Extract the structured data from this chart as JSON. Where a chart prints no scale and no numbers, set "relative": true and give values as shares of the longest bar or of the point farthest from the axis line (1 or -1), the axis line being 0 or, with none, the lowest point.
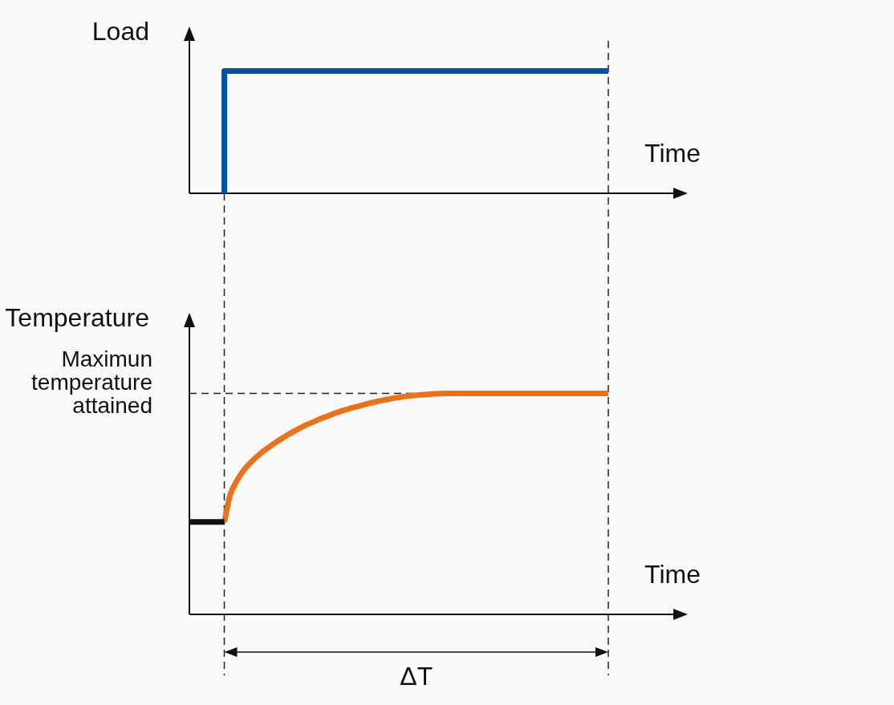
{
  "chart_data": [
    {
      "type": "step",
      "ylabel": "Load",
      "xlabel": "Time",
      "relative": true,
      "categories": [
        null,
        null,
        null,
        null,
        null,
        null,
        null,
        null,
        null,
        null,
        null,
        null,
        null,
        null,
        null,
        null,
        null,
        null,
        null,
        null,
        null,
        null,
        null,
        null,
        null,
        null,
        null,
        null,
        null,
        null,
        null,
        null,
        null,
        null,
        null,
        null,
        null,
        null,
        null,
        null,
        null,
        null,
        null,
        null,
        null,
        null,
        null,
        null,
        null,
        null,
        null,
        null,
        null,
        null,
        null,
        null,
        null,
        null,
        null,
        null,
        null,
        null,
        null,
        null,
        null,
        null,
        null,
        null,
        null,
        null,
        null,
        null,
        null,
        null,
        null,
        null,
        null,
        null,
        null,
        null,
        null,
        null,
        null,
        null,
        null
      ],
      "series": [
        {
          "color": "#0052a4",
          "values": [
            null,
            null,
            null,
            null,
            null,
            null,
            0,
            1,
            1,
            1,
            1,
            1,
            1,
            1,
            1,
            1,
            1,
            1,
            1,
            1,
            1,
            1,
            1,
            1,
            1,
            1,
            1,
            1,
            1,
            1,
            1,
            1,
            1,
            1,
            1,
            1,
            1,
            1,
            1,
            1,
            1,
            1,
            1,
            1,
            1,
            1,
            1,
            1,
            1,
            1,
            1,
            1,
            1,
            1,
            1,
            1,
            1,
            1,
            1,
            1,
            1,
            1,
            1,
            1,
            1,
            1,
            1,
            1,
            1,
            1,
            1,
            1,
            1,
            null,
            null,
            null,
            null,
            null,
            null,
            null,
            null,
            null,
            null,
            null,
            null
          ]
        }
      ]
    },
    {
      "type": "line",
      "ylabel": "Temperature",
      "xlabel": "Time",
      "relative": true,
      "categories": [
        null,
        null,
        null,
        null,
        null,
        null,
        null,
        null,
        null,
        null,
        null,
        null,
        null,
        null,
        null,
        null,
        null,
        null,
        null,
        null,
        null,
        null,
        null,
        null,
        null,
        null,
        null,
        null,
        null,
        null,
        null,
        null,
        null,
        null,
        null,
        null,
        null,
        null,
        null,
        null,
        null,
        null,
        null,
        null,
        null,
        null,
        null,
        null,
        null,
        null,
        null,
        null,
        null,
        null,
        null,
        null,
        null,
        null,
        null,
        null,
        null,
        null,
        null,
        null,
        null,
        null,
        null,
        null,
        null,
        null,
        null,
        null,
        null,
        null,
        null,
        null,
        null,
        null,
        null,
        null,
        null,
        null,
        null,
        null,
        null
      ],
      "series": [
        {
          "color": "#111111",
          "values": [
            0.418,
            0.418,
            0.418,
            0.418,
            0.418,
            0.418,
            0.418,
            null,
            null,
            null,
            null,
            null,
            null,
            null,
            null,
            null,
            null,
            null,
            null,
            null,
            null,
            null,
            null,
            null,
            null,
            null,
            null,
            null,
            null,
            null,
            null,
            null,
            null,
            null,
            null,
            null,
            null,
            null,
            null,
            null,
            null,
            null,
            null,
            null,
            null,
            null,
            null,
            null,
            null,
            null,
            null,
            null,
            null,
            null,
            null,
            null,
            null,
            null,
            null,
            null,
            null,
            null,
            null,
            null,
            null,
            null,
            null,
            null,
            null,
            null,
            null,
            null,
            null,
            null,
            null,
            null,
            null,
            null,
            null,
            null,
            null,
            null,
            null,
            null,
            null
          ]
        },
        {
          "color": "#e8731a",
          "values": [
            null,
            null,
            null,
            null,
            null,
            null,
            0.418,
            0.54,
            0.598,
            0.64,
            0.673,
            0.7,
            0.723,
            0.744,
            0.763,
            0.781,
            0.798,
            0.814,
            0.829,
            0.843,
            0.856,
            0.868,
            0.879,
            0.89,
            0.9,
            0.91,
            0.919,
            0.927,
            0.935,
            0.942,
            0.949,
            0.956,
            0.962,
            0.968,
            0.973,
            0.978,
            0.982,
            0.986,
            0.989,
            0.992,
            0.994,
            0.996,
            0.998,
            0.999,
            1,
            1,
            1,
            1,
            1,
            1,
            1,
            1,
            1,
            1,
            1,
            1,
            1,
            1,
            1,
            1,
            1,
            1,
            1,
            1,
            1,
            1,
            1,
            1,
            1,
            1,
            1,
            1,
            1,
            null,
            null,
            null,
            null,
            null,
            null,
            null,
            null,
            null,
            null,
            null,
            null
          ]
        }
      ],
      "ref_lines": [
        {
          "axis": "y",
          "value": 1,
          "label": "Maximun temperature attained",
          "line_style": "dashed"
        }
      ],
      "annotations": [
        "ΔT"
      ]
    }
  ]
}
